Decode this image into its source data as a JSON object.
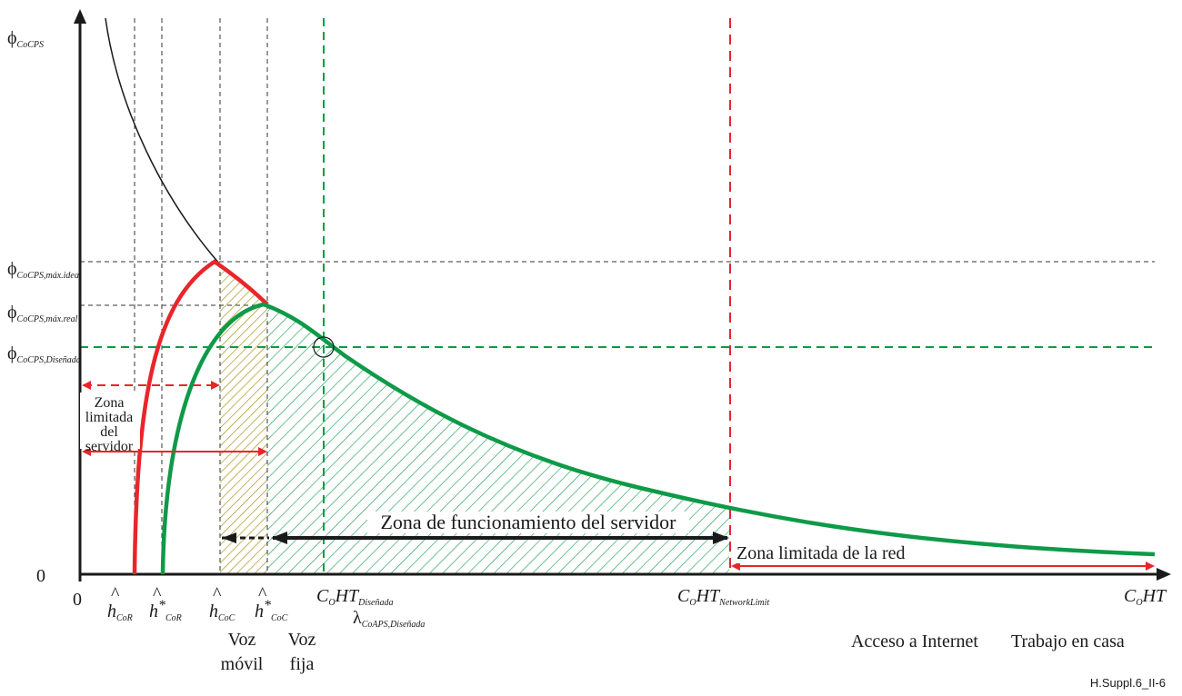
{
  "y_axis": {
    "phi": "ϕ",
    "top_sub": "CoCPS",
    "max_ideal_sub": "CoCPS,máx.ideal",
    "max_real_sub": "CoCPS,máx.real",
    "designed_sub": "CoCPS,Diseñada",
    "zero": "0"
  },
  "x_axis": {
    "zero": "0",
    "h_hat_cor_sub": "CoR",
    "h_star_cor_sub": "CoR",
    "h_hat_coc_sub": "CoC",
    "h_star_coc_sub": "CoC",
    "h_letter": "h",
    "hat": "^",
    "star": "*",
    "c": "C",
    "o_sub": "O",
    "ht": "HT",
    "designed_sub": "Diseñada",
    "network_limit_sub": "NetworkLimit",
    "lambda": "λ",
    "lambda_sub": "CoAPS,Diseñada"
  },
  "labels": {
    "voz_movil_1": "Voz",
    "voz_movil_2": "móvil",
    "voz_fija_1": "Voz",
    "voz_fija_2": "fija",
    "server_zone_1": "Zona",
    "server_zone_2": "limitada",
    "server_zone_3": "del",
    "server_zone_4": "servidor",
    "operation_zone": "Zona de funcionamiento del servidor",
    "network_zone": "Zona limitada de la red",
    "internet_access": "Acceso a Internet",
    "home_work": "Trabajo en casa",
    "figure_id": "H.Suppl.6_II-6"
  },
  "colors": {
    "red": "#e8262a",
    "green": "#0e9a48",
    "olive": "#a08c10",
    "black": "#1a1a1a"
  }
}
